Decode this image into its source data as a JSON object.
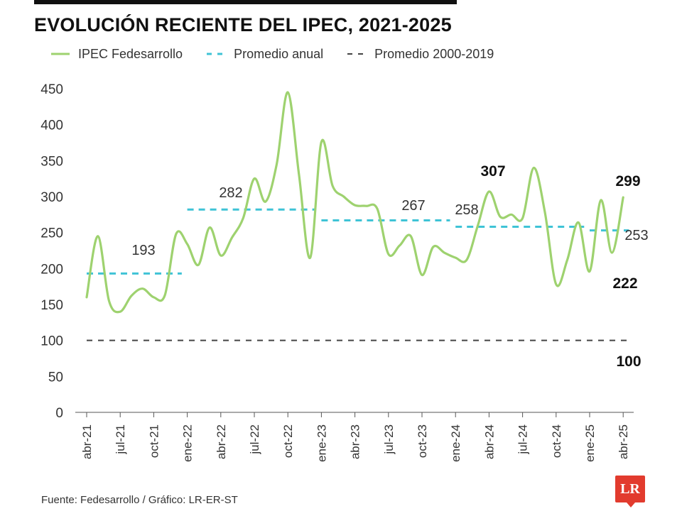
{
  "chart_data": {
    "type": "line",
    "title": "EVOLUCIÓN RECIENTE DEL IPEC, 2021-2025",
    "xlabel": "",
    "ylabel": "",
    "ylim": [
      0,
      450
    ],
    "yticks": [
      0,
      50,
      100,
      150,
      200,
      250,
      300,
      350,
      400,
      450
    ],
    "x_tick_labels": [
      "abr-21",
      "jul-21",
      "oct-21",
      "ene-22",
      "abr-22",
      "jul-22",
      "oct-22",
      "ene-23",
      "abr-23",
      "jul-23",
      "oct-23",
      "ene-24",
      "abr-24",
      "jul-24",
      "oct-24",
      "ene-25",
      "abr-25"
    ],
    "grid": false,
    "legend": "top",
    "series": [
      {
        "name": "IPEC Fedesarrollo",
        "color": "#9ed26f",
        "style": "solid",
        "x": [
          "abr-21",
          "may-21",
          "jun-21",
          "jul-21",
          "ago-21",
          "sep-21",
          "oct-21",
          "nov-21",
          "dic-21",
          "ene-22",
          "feb-22",
          "mar-22",
          "abr-22",
          "may-22",
          "jun-22",
          "jul-22",
          "ago-22",
          "sep-22",
          "oct-22",
          "nov-22",
          "dic-22",
          "ene-23",
          "feb-23",
          "mar-23",
          "abr-23",
          "may-23",
          "jun-23",
          "jul-23",
          "ago-23",
          "sep-23",
          "oct-23",
          "nov-23",
          "dic-23",
          "ene-24",
          "feb-24",
          "mar-24",
          "abr-24",
          "may-24",
          "jun-24",
          "jul-24",
          "ago-24",
          "sep-24",
          "oct-24",
          "nov-24",
          "dic-24",
          "ene-25",
          "feb-25",
          "mar-25",
          "abr-25"
        ],
        "values": [
          160,
          245,
          155,
          140,
          162,
          172,
          160,
          163,
          248,
          234,
          205,
          257,
          218,
          243,
          270,
          325,
          293,
          345,
          445,
          330,
          215,
          376,
          315,
          300,
          288,
          287,
          283,
          220,
          232,
          245,
          191,
          230,
          222,
          215,
          212,
          260,
          307,
          272,
          275,
          270,
          340,
          278,
          178,
          212,
          264,
          196,
          295,
          222,
          299
        ]
      },
      {
        "name": "Promedio anual",
        "color": "#3fc3d6",
        "style": "dashed",
        "segments": [
          {
            "value": 193,
            "label": "193",
            "from": "abr-21",
            "to": "dic-21"
          },
          {
            "value": 282,
            "label": "282",
            "from": "ene-22",
            "to": "dic-22"
          },
          {
            "value": 267,
            "label": "267",
            "from": "ene-23",
            "to": "dic-23"
          },
          {
            "value": 258,
            "label": "258",
            "from": "ene-24",
            "to": "dic-24"
          },
          {
            "value": 253,
            "label": "253",
            "from": "ene-25",
            "to": "abr-25"
          }
        ]
      },
      {
        "name": "Promedio 2000-2019",
        "color": "#444444",
        "style": "dashed",
        "value": 100
      }
    ],
    "annotations": [
      {
        "text": "307",
        "x": "abr-24",
        "value": 307,
        "bold": true
      },
      {
        "text": "299",
        "x": "abr-25",
        "value": 299,
        "bold": true
      },
      {
        "text": "222",
        "x": "mar-25",
        "value": 222,
        "bold": true
      },
      {
        "text": "100",
        "x": "abr-25",
        "value": 100,
        "bold": true
      }
    ],
    "source": "Fuente: Fedesarrollo / Gráfico: LR-ER-ST",
    "logo": "LR"
  }
}
